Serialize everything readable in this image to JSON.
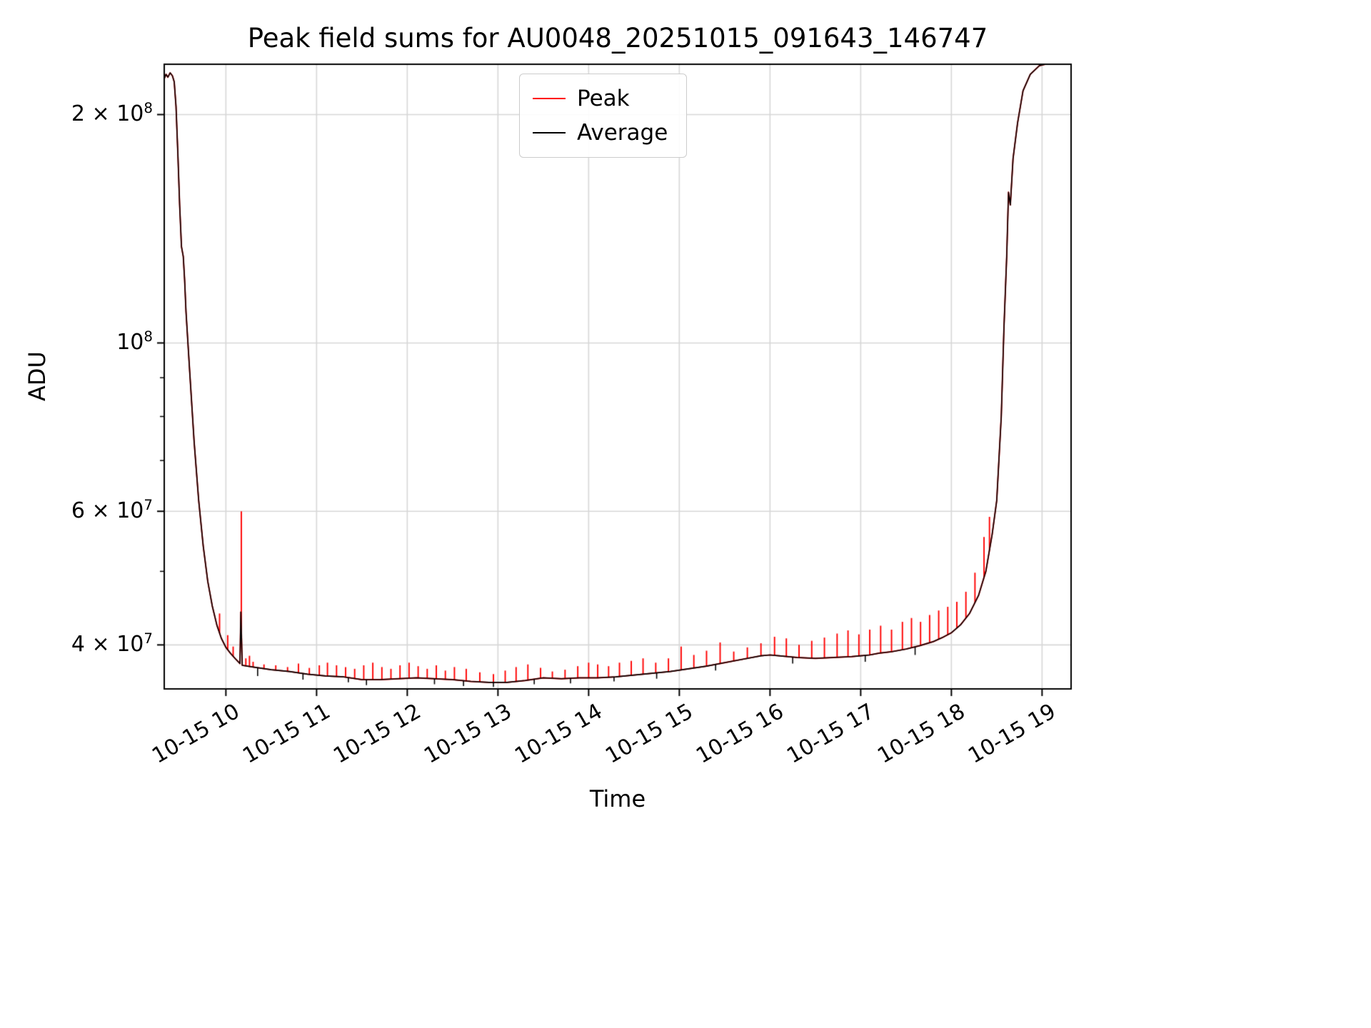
{
  "chart_data": {
    "type": "line",
    "title": "Peak field sums for AU0048_20251015_091643_146747",
    "xlabel": "Time",
    "ylabel": "ADU",
    "yscale": "log",
    "grid": true,
    "legend_position": "upper center",
    "xlim": [
      9.32,
      19.32
    ],
    "ylim": [
      35000000.0,
      233000000.0
    ],
    "x_unit": "hour of day on 10-15 (decimal)",
    "x_ticks": [
      {
        "t": 10,
        "label": "10-15 10"
      },
      {
        "t": 11,
        "label": "10-15 11"
      },
      {
        "t": 12,
        "label": "10-15 12"
      },
      {
        "t": 13,
        "label": "10-15 13"
      },
      {
        "t": 14,
        "label": "10-15 14"
      },
      {
        "t": 15,
        "label": "10-15 15"
      },
      {
        "t": 16,
        "label": "10-15 16"
      },
      {
        "t": 17,
        "label": "10-15 17"
      },
      {
        "t": 18,
        "label": "10-15 18"
      },
      {
        "t": 19,
        "label": "10-15 19"
      }
    ],
    "y_ticks": [
      {
        "v": 200000000.0,
        "prefix": "2 × 10",
        "exp": "8"
      },
      {
        "v": 100000000.0,
        "prefix": "10",
        "exp": "8"
      },
      {
        "v": 60000000.0,
        "prefix": "6 × 10",
        "exp": "7"
      },
      {
        "v": 40000000.0,
        "prefix": "4 × 10",
        "exp": "7"
      }
    ],
    "y_minor_ticks": [
      50000000.0,
      70000000.0,
      80000000.0,
      90000000.0
    ],
    "colors": {
      "grid": "#d7d7d7",
      "spine": "#000000"
    },
    "series": [
      {
        "name": "Peak",
        "color": "#ff0000",
        "note": "follows Average baseline with upward spikes",
        "spikes": [
          [
            9.93,
            44000000.0
          ],
          [
            10.02,
            41200000.0
          ],
          [
            10.08,
            39800000.0
          ],
          [
            10.17,
            60000000.0
          ],
          [
            10.22,
            38400000.0
          ],
          [
            10.26,
            38700000.0
          ],
          [
            10.3,
            38000000.0
          ],
          [
            10.42,
            37700000.0
          ],
          [
            10.55,
            37600000.0
          ],
          [
            10.68,
            37400000.0
          ],
          [
            10.8,
            37800000.0
          ],
          [
            10.92,
            37300000.0
          ],
          [
            11.03,
            37600000.0
          ],
          [
            11.12,
            37900000.0
          ],
          [
            11.22,
            37600000.0
          ],
          [
            11.32,
            37400000.0
          ],
          [
            11.42,
            37200000.0
          ],
          [
            11.52,
            37600000.0
          ],
          [
            11.62,
            37900000.0
          ],
          [
            11.72,
            37400000.0
          ],
          [
            11.82,
            37200000.0
          ],
          [
            11.92,
            37600000.0
          ],
          [
            12.02,
            37900000.0
          ],
          [
            12.12,
            37500000.0
          ],
          [
            12.22,
            37200000.0
          ],
          [
            12.32,
            37600000.0
          ],
          [
            12.42,
            37000000.0
          ],
          [
            12.52,
            37400000.0
          ],
          [
            12.65,
            37200000.0
          ],
          [
            12.8,
            36800000.0
          ],
          [
            12.95,
            36600000.0
          ],
          [
            13.08,
            37000000.0
          ],
          [
            13.2,
            37400000.0
          ],
          [
            13.33,
            37700000.0
          ],
          [
            13.47,
            37300000.0
          ],
          [
            13.6,
            36900000.0
          ],
          [
            13.74,
            37100000.0
          ],
          [
            13.88,
            37500000.0
          ],
          [
            14.0,
            37900000.0
          ],
          [
            14.1,
            37700000.0
          ],
          [
            14.22,
            37500000.0
          ],
          [
            14.34,
            37900000.0
          ],
          [
            14.47,
            38100000.0
          ],
          [
            14.6,
            38400000.0
          ],
          [
            14.74,
            37900000.0
          ],
          [
            14.88,
            38400000.0
          ],
          [
            15.02,
            39800000.0
          ],
          [
            15.16,
            38800000.0
          ],
          [
            15.3,
            39300000.0
          ],
          [
            15.45,
            40300000.0
          ],
          [
            15.6,
            39200000.0
          ],
          [
            15.75,
            39700000.0
          ],
          [
            15.9,
            40200000.0
          ],
          [
            16.05,
            41000000.0
          ],
          [
            16.18,
            40800000.0
          ],
          [
            16.32,
            40000000.0
          ],
          [
            16.46,
            40500000.0
          ],
          [
            16.6,
            40900000.0
          ],
          [
            16.74,
            41400000.0
          ],
          [
            16.86,
            41800000.0
          ],
          [
            16.98,
            41300000.0
          ],
          [
            17.1,
            41900000.0
          ],
          [
            17.22,
            42400000.0
          ],
          [
            17.34,
            41900000.0
          ],
          [
            17.46,
            42900000.0
          ],
          [
            17.56,
            43400000.0
          ],
          [
            17.66,
            42900000.0
          ],
          [
            17.76,
            43800000.0
          ],
          [
            17.86,
            44400000.0
          ],
          [
            17.96,
            44900000.0
          ],
          [
            18.06,
            45600000.0
          ],
          [
            18.16,
            47000000.0
          ],
          [
            18.26,
            49800000.0
          ],
          [
            18.36,
            55500000.0
          ],
          [
            18.42,
            59000000.0
          ]
        ]
      },
      {
        "name": "Average",
        "color": "#000000",
        "points": [
          [
            9.32,
            223000000.0
          ],
          [
            9.34,
            226000000.0
          ],
          [
            9.36,
            224000000.0
          ],
          [
            9.385,
            227000000.0
          ],
          [
            9.41,
            225000000.0
          ],
          [
            9.43,
            221000000.0
          ],
          [
            9.45,
            205000000.0
          ],
          [
            9.47,
            178000000.0
          ],
          [
            9.49,
            152000000.0
          ],
          [
            9.51,
            134000000.0
          ],
          [
            9.53,
            130000000.0
          ],
          [
            9.545,
            121000000.0
          ],
          [
            9.56,
            110000000.0
          ],
          [
            9.6,
            92000000.0
          ],
          [
            9.65,
            74000000.0
          ],
          [
            9.7,
            62000000.0
          ],
          [
            9.75,
            54000000.0
          ],
          [
            9.8,
            48500000.0
          ],
          [
            9.85,
            45000000.0
          ],
          [
            9.9,
            42500000.0
          ],
          [
            9.95,
            40800000.0
          ],
          [
            10.0,
            39700000.0
          ],
          [
            10.05,
            39000000.0
          ],
          [
            10.1,
            38400000.0
          ],
          [
            10.155,
            37800000.0
          ],
          [
            10.165,
            44200000.0
          ],
          [
            10.18,
            37600000.0
          ],
          [
            10.3,
            37400000.0
          ],
          [
            10.5,
            37100000.0
          ],
          [
            10.7,
            36900000.0
          ],
          [
            10.9,
            36600000.0
          ],
          [
            11.1,
            36400000.0
          ],
          [
            11.3,
            36300000.0
          ],
          [
            11.5,
            36000000.0
          ],
          [
            11.7,
            36000000.0
          ],
          [
            11.9,
            36100000.0
          ],
          [
            12.1,
            36200000.0
          ],
          [
            12.3,
            36100000.0
          ],
          [
            12.5,
            36000000.0
          ],
          [
            12.7,
            35800000.0
          ],
          [
            12.9,
            35700000.0
          ],
          [
            13.1,
            35700000.0
          ],
          [
            13.3,
            35900000.0
          ],
          [
            13.5,
            36200000.0
          ],
          [
            13.7,
            36100000.0
          ],
          [
            13.9,
            36200000.0
          ],
          [
            14.1,
            36200000.0
          ],
          [
            14.3,
            36300000.0
          ],
          [
            14.5,
            36500000.0
          ],
          [
            14.7,
            36700000.0
          ],
          [
            14.9,
            36900000.0
          ],
          [
            15.1,
            37200000.0
          ],
          [
            15.3,
            37500000.0
          ],
          [
            15.5,
            37900000.0
          ],
          [
            15.7,
            38300000.0
          ],
          [
            15.9,
            38700000.0
          ],
          [
            16.0,
            38800000.0
          ],
          [
            16.1,
            38700000.0
          ],
          [
            16.3,
            38500000.0
          ],
          [
            16.5,
            38400000.0
          ],
          [
            16.7,
            38500000.0
          ],
          [
            16.9,
            38600000.0
          ],
          [
            17.0,
            38700000.0
          ],
          [
            17.1,
            38800000.0
          ],
          [
            17.2,
            39000000.0
          ],
          [
            17.35,
            39200000.0
          ],
          [
            17.5,
            39500000.0
          ],
          [
            17.65,
            39900000.0
          ],
          [
            17.8,
            40400000.0
          ],
          [
            17.9,
            40900000.0
          ],
          [
            18.0,
            41500000.0
          ],
          [
            18.1,
            42500000.0
          ],
          [
            18.2,
            44000000.0
          ],
          [
            18.3,
            46500000.0
          ],
          [
            18.38,
            50000000.0
          ],
          [
            18.45,
            56000000.0
          ],
          [
            18.5,
            62000000.0
          ],
          [
            18.55,
            80000000.0
          ],
          [
            18.58,
            105000000.0
          ],
          [
            18.61,
            130000000.0
          ],
          [
            18.63,
            158000000.0
          ],
          [
            18.65,
            152000000.0
          ],
          [
            18.68,
            175000000.0
          ],
          [
            18.73,
            195000000.0
          ],
          [
            18.79,
            215000000.0
          ],
          [
            18.87,
            226000000.0
          ],
          [
            18.97,
            232000000.0
          ],
          [
            19.1,
            234000000.0
          ],
          [
            19.32,
            235000000.0
          ]
        ],
        "dips": [
          [
            10.35,
            36400000.0
          ],
          [
            10.85,
            36000000.0
          ],
          [
            11.35,
            35700000.0
          ],
          [
            11.55,
            35400000.0
          ],
          [
            12.3,
            35500000.0
          ],
          [
            12.62,
            35300000.0
          ],
          [
            12.95,
            35200000.0
          ],
          [
            13.4,
            35500000.0
          ],
          [
            13.8,
            35600000.0
          ],
          [
            14.28,
            35800000.0
          ],
          [
            14.75,
            36100000.0
          ],
          [
            15.4,
            37000000.0
          ],
          [
            16.25,
            37800000.0
          ],
          [
            17.05,
            38000000.0
          ],
          [
            17.6,
            38800000.0
          ]
        ]
      }
    ]
  }
}
